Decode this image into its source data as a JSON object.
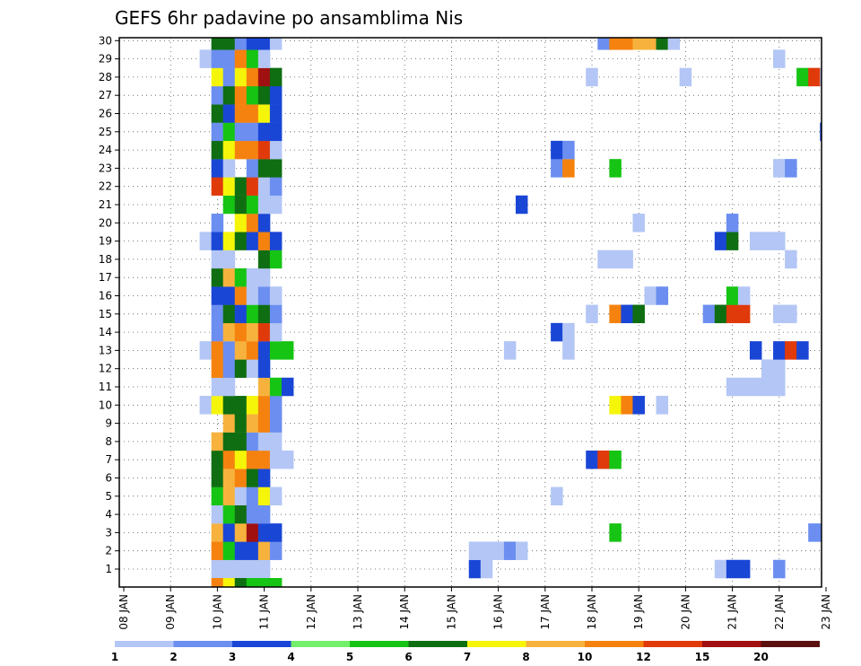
{
  "chart_data": {
    "type": "heatmap",
    "title": "GEFS 6hr padavine po ansamblima Nis",
    "y_ticks": [
      "1",
      "2",
      "3",
      "4",
      "5",
      "6",
      "7",
      "8",
      "9",
      "10",
      "11",
      "12",
      "13",
      "14",
      "15",
      "16",
      "17",
      "18",
      "19",
      "20",
      "21",
      "22",
      "23",
      "24",
      "25",
      "26",
      "27",
      "28",
      "29",
      "30"
    ],
    "x_ticks": [
      "08 JAN",
      "09 JAN",
      "10 JAN",
      "11 JAN",
      "12 JAN",
      "13 JAN",
      "14 JAN",
      "15 JAN",
      "16 JAN",
      "17 JAN",
      "18 JAN",
      "19 JAN",
      "20 JAN",
      "21 JAN",
      "22 JAN",
      "23 JAN"
    ],
    "grid": true,
    "legend": {
      "placement": "bottom",
      "labels": [
        "1",
        "2",
        "3",
        "4",
        "5",
        "6",
        "7",
        "8",
        "10",
        "12",
        "15",
        "20"
      ],
      "colors": [
        "#b3c6f5",
        "#6b8ef0",
        "#1a46d6",
        "#73ef6b",
        "#16c414",
        "#0f6e12",
        "#f5f50a",
        "#f7b23d",
        "#f5820f",
        "#e03a0a",
        "#a01010",
        "#5c0f0f"
      ]
    },
    "x_domain": [
      0,
      60
    ],
    "y_domain": [
      0.5,
      30.5
    ],
    "cells": [
      {
        "m": 1,
        "c": [
          [
            8,
            1
          ],
          [
            9,
            1
          ],
          [
            10,
            1
          ],
          [
            11,
            1
          ],
          [
            12,
            1
          ],
          [
            30,
            3
          ],
          [
            31,
            1
          ],
          [
            51,
            1
          ],
          [
            52,
            3
          ],
          [
            53,
            3
          ],
          [
            56,
            2
          ]
        ]
      },
      {
        "m": 2,
        "c": [
          [
            8,
            9
          ],
          [
            9,
            5
          ],
          [
            10,
            3
          ],
          [
            11,
            3
          ],
          [
            12,
            8
          ],
          [
            13,
            2
          ],
          [
            30,
            1
          ],
          [
            31,
            1
          ],
          [
            32,
            1
          ],
          [
            33,
            2
          ],
          [
            34,
            1
          ]
        ]
      },
      {
        "m": 3,
        "c": [
          [
            8,
            8
          ],
          [
            9,
            3
          ],
          [
            10,
            8
          ],
          [
            11,
            11
          ],
          [
            12,
            3
          ],
          [
            13,
            3
          ],
          [
            42,
            5
          ],
          [
            59,
            2
          ],
          [
            60,
            2
          ]
        ]
      },
      {
        "m": 4,
        "c": [
          [
            8,
            1
          ],
          [
            9,
            5
          ],
          [
            10,
            6
          ],
          [
            11,
            2
          ],
          [
            12,
            2
          ]
        ]
      },
      {
        "m": 5,
        "c": [
          [
            8,
            5
          ],
          [
            9,
            8
          ],
          [
            10,
            1
          ],
          [
            11,
            2
          ],
          [
            12,
            7
          ],
          [
            13,
            1
          ],
          [
            37,
            1
          ]
        ]
      },
      {
        "m": 6,
        "c": [
          [
            8,
            6
          ],
          [
            9,
            8
          ],
          [
            10,
            9
          ],
          [
            11,
            6
          ],
          [
            12,
            3
          ]
        ]
      },
      {
        "m": 7,
        "c": [
          [
            8,
            6
          ],
          [
            9,
            9
          ],
          [
            10,
            7
          ],
          [
            11,
            9
          ],
          [
            12,
            9
          ],
          [
            13,
            1
          ],
          [
            14,
            1
          ],
          [
            40,
            3
          ],
          [
            41,
            10
          ],
          [
            42,
            5
          ]
        ]
      },
      {
        "m": 8,
        "c": [
          [
            8,
            8
          ],
          [
            9,
            6
          ],
          [
            10,
            6
          ],
          [
            11,
            2
          ],
          [
            12,
            1
          ],
          [
            13,
            1
          ]
        ]
      },
      {
        "m": 9,
        "c": [
          [
            9,
            8
          ],
          [
            10,
            6
          ],
          [
            11,
            8
          ],
          [
            12,
            9
          ],
          [
            13,
            2
          ]
        ]
      },
      {
        "m": 10,
        "c": [
          [
            7,
            1
          ],
          [
            8,
            7
          ],
          [
            9,
            6
          ],
          [
            10,
            6
          ],
          [
            11,
            7
          ],
          [
            12,
            9
          ],
          [
            13,
            2
          ],
          [
            42,
            7
          ],
          [
            43,
            9
          ],
          [
            44,
            3
          ],
          [
            46,
            1
          ]
        ]
      },
      {
        "m": 11,
        "c": [
          [
            8,
            1
          ],
          [
            9,
            1
          ],
          [
            12,
            8
          ],
          [
            13,
            5
          ],
          [
            14,
            3
          ],
          [
            52,
            1
          ],
          [
            53,
            1
          ],
          [
            54,
            1
          ],
          [
            55,
            1
          ],
          [
            56,
            1
          ]
        ]
      },
      {
        "m": 12,
        "c": [
          [
            8,
            9
          ],
          [
            9,
            2
          ],
          [
            10,
            6
          ],
          [
            11,
            1
          ],
          [
            12,
            3
          ],
          [
            55,
            1
          ],
          [
            56,
            1
          ]
        ]
      },
      {
        "m": 13,
        "c": [
          [
            7,
            1
          ],
          [
            8,
            9
          ],
          [
            9,
            2
          ],
          [
            10,
            8
          ],
          [
            11,
            9
          ],
          [
            12,
            3
          ],
          [
            13,
            5
          ],
          [
            14,
            5
          ],
          [
            33,
            1
          ],
          [
            38,
            1
          ],
          [
            54,
            3
          ],
          [
            56,
            3
          ],
          [
            57,
            10
          ],
          [
            58,
            3
          ]
        ]
      },
      {
        "m": 14,
        "c": [
          [
            8,
            2
          ],
          [
            9,
            8
          ],
          [
            10,
            9
          ],
          [
            11,
            8
          ],
          [
            12,
            10
          ],
          [
            13,
            1
          ],
          [
            37,
            3
          ],
          [
            38,
            1
          ]
        ]
      },
      {
        "m": 15,
        "c": [
          [
            8,
            2
          ],
          [
            9,
            6
          ],
          [
            10,
            3
          ],
          [
            11,
            5
          ],
          [
            12,
            6
          ],
          [
            13,
            2
          ],
          [
            40,
            1
          ],
          [
            42,
            9
          ],
          [
            43,
            3
          ],
          [
            44,
            6
          ],
          [
            50,
            2
          ],
          [
            51,
            6
          ],
          [
            52,
            10
          ],
          [
            53,
            10
          ],
          [
            56,
            1
          ],
          [
            57,
            1
          ]
        ]
      },
      {
        "m": 16,
        "c": [
          [
            8,
            3
          ],
          [
            9,
            3
          ],
          [
            10,
            9
          ],
          [
            11,
            1
          ],
          [
            12,
            2
          ],
          [
            13,
            1
          ],
          [
            45,
            1
          ],
          [
            46,
            2
          ],
          [
            52,
            5
          ],
          [
            53,
            1
          ]
        ]
      },
      {
        "m": 17,
        "c": [
          [
            8,
            6
          ],
          [
            9,
            8
          ],
          [
            10,
            5
          ],
          [
            11,
            1
          ],
          [
            12,
            1
          ]
        ]
      },
      {
        "m": 18,
        "c": [
          [
            8,
            1
          ],
          [
            9,
            1
          ],
          [
            12,
            6
          ],
          [
            13,
            5
          ],
          [
            41,
            1
          ],
          [
            42,
            1
          ],
          [
            43,
            1
          ],
          [
            57,
            1
          ]
        ]
      },
      {
        "m": 19,
        "c": [
          [
            7,
            1
          ],
          [
            8,
            3
          ],
          [
            9,
            7
          ],
          [
            10,
            6
          ],
          [
            11,
            3
          ],
          [
            12,
            9
          ],
          [
            13,
            3
          ],
          [
            51,
            3
          ],
          [
            52,
            6
          ],
          [
            54,
            1
          ],
          [
            55,
            1
          ],
          [
            56,
            1
          ]
        ]
      },
      {
        "m": 20,
        "c": [
          [
            8,
            2
          ],
          [
            10,
            7
          ],
          [
            11,
            9
          ],
          [
            12,
            3
          ],
          [
            44,
            1
          ],
          [
            52,
            2
          ]
        ]
      },
      {
        "m": 21,
        "c": [
          [
            9,
            5
          ],
          [
            10,
            6
          ],
          [
            11,
            5
          ],
          [
            12,
            1
          ],
          [
            13,
            1
          ],
          [
            34,
            3
          ]
        ]
      },
      {
        "m": 22,
        "c": [
          [
            8,
            10
          ],
          [
            9,
            7
          ],
          [
            10,
            6
          ],
          [
            11,
            10
          ],
          [
            12,
            1
          ],
          [
            13,
            2
          ]
        ]
      },
      {
        "m": 23,
        "c": [
          [
            8,
            3
          ],
          [
            9,
            1
          ],
          [
            11,
            2
          ],
          [
            12,
            6
          ],
          [
            13,
            6
          ],
          [
            37,
            2
          ],
          [
            38,
            9
          ],
          [
            42,
            5
          ],
          [
            56,
            1
          ],
          [
            57,
            2
          ]
        ]
      },
      {
        "m": 24,
        "c": [
          [
            8,
            6
          ],
          [
            9,
            7
          ],
          [
            10,
            9
          ],
          [
            11,
            9
          ],
          [
            12,
            10
          ],
          [
            13,
            1
          ],
          [
            37,
            3
          ],
          [
            38,
            2
          ]
        ]
      },
      {
        "m": 25,
        "c": [
          [
            8,
            2
          ],
          [
            9,
            5
          ],
          [
            10,
            2
          ],
          [
            11,
            2
          ],
          [
            12,
            3
          ],
          [
            13,
            3
          ],
          [
            60,
            3
          ]
        ]
      },
      {
        "m": 26,
        "c": [
          [
            8,
            6
          ],
          [
            9,
            3
          ],
          [
            10,
            9
          ],
          [
            11,
            9
          ],
          [
            12,
            7
          ],
          [
            13,
            3
          ]
        ]
      },
      {
        "m": 27,
        "c": [
          [
            8,
            2
          ],
          [
            9,
            6
          ],
          [
            10,
            9
          ],
          [
            11,
            5
          ],
          [
            12,
            6
          ],
          [
            13,
            3
          ]
        ]
      },
      {
        "m": 28,
        "c": [
          [
            8,
            7
          ],
          [
            9,
            2
          ],
          [
            10,
            7
          ],
          [
            11,
            9
          ],
          [
            12,
            11
          ],
          [
            13,
            6
          ],
          [
            40,
            1
          ],
          [
            48,
            1
          ],
          [
            58,
            5
          ],
          [
            59,
            10
          ],
          [
            60,
            1
          ]
        ]
      },
      {
        "m": 29,
        "c": [
          [
            7,
            1
          ],
          [
            8,
            2
          ],
          [
            9,
            2
          ],
          [
            10,
            9
          ],
          [
            11,
            5
          ],
          [
            12,
            1
          ],
          [
            56,
            1
          ]
        ]
      },
      {
        "m": 30,
        "c": [
          [
            8,
            6
          ],
          [
            9,
            6
          ],
          [
            10,
            2
          ],
          [
            11,
            3
          ],
          [
            12,
            3
          ],
          [
            13,
            1
          ],
          [
            41,
            2
          ],
          [
            42,
            9
          ],
          [
            43,
            9
          ],
          [
            44,
            8
          ],
          [
            45,
            8
          ],
          [
            46,
            6
          ],
          [
            47,
            1
          ]
        ]
      },
      {
        "m": 0,
        "c": [
          [
            8,
            9
          ],
          [
            9,
            7
          ],
          [
            10,
            6
          ],
          [
            11,
            5
          ],
          [
            12,
            5
          ],
          [
            13,
            5
          ]
        ]
      }
    ]
  }
}
